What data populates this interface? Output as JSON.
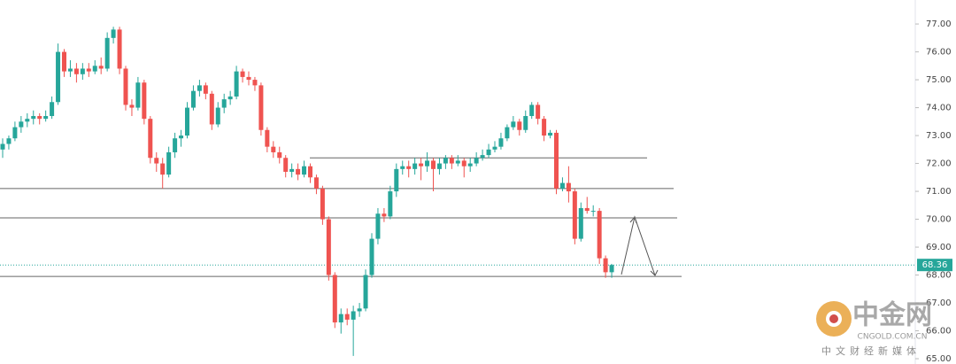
{
  "chart_data": {
    "type": "candlestick",
    "ohlc": [
      [
        72.5,
        72.9,
        72.2,
        72.7
      ],
      [
        72.7,
        73.0,
        72.5,
        72.9
      ],
      [
        72.9,
        73.5,
        72.8,
        73.3
      ],
      [
        73.3,
        73.7,
        73.1,
        73.5
      ],
      [
        73.5,
        73.8,
        73.3,
        73.6
      ],
      [
        73.6,
        73.9,
        73.4,
        73.7
      ],
      [
        73.7,
        73.8,
        73.4,
        73.6
      ],
      [
        73.6,
        73.9,
        73.5,
        73.7
      ],
      [
        73.7,
        74.4,
        73.6,
        74.2
      ],
      [
        74.2,
        76.3,
        74.1,
        76.0
      ],
      [
        76.0,
        76.1,
        75.1,
        75.3
      ],
      [
        75.3,
        75.7,
        75.1,
        75.4
      ],
      [
        75.4,
        75.6,
        74.9,
        75.2
      ],
      [
        75.2,
        75.6,
        75.0,
        75.4
      ],
      [
        75.4,
        75.6,
        75.1,
        75.3
      ],
      [
        75.3,
        75.7,
        75.2,
        75.5
      ],
      [
        75.5,
        75.8,
        75.2,
        75.4
      ],
      [
        75.4,
        76.7,
        75.3,
        76.5
      ],
      [
        76.5,
        76.9,
        76.3,
        76.8
      ],
      [
        76.8,
        76.9,
        75.2,
        75.4
      ],
      [
        75.4,
        75.5,
        73.9,
        74.1
      ],
      [
        74.1,
        74.3,
        73.7,
        74.0
      ],
      [
        74.0,
        75.1,
        73.9,
        74.9
      ],
      [
        74.9,
        75.0,
        73.4,
        73.6
      ],
      [
        73.6,
        73.7,
        72.0,
        72.2
      ],
      [
        72.2,
        72.4,
        71.7,
        72.0
      ],
      [
        72.0,
        72.2,
        71.1,
        71.6
      ],
      [
        71.6,
        72.6,
        71.5,
        72.4
      ],
      [
        72.4,
        73.1,
        72.2,
        72.9
      ],
      [
        72.9,
        73.2,
        72.6,
        73.0
      ],
      [
        73.0,
        74.2,
        72.9,
        74.0
      ],
      [
        74.0,
        74.8,
        73.9,
        74.6
      ],
      [
        74.6,
        75.0,
        74.4,
        74.8
      ],
      [
        74.8,
        74.9,
        74.3,
        74.5
      ],
      [
        74.5,
        74.6,
        73.2,
        73.4
      ],
      [
        73.4,
        74.2,
        73.3,
        74.0
      ],
      [
        74.0,
        74.5,
        73.8,
        74.3
      ],
      [
        74.3,
        74.6,
        74.1,
        74.4
      ],
      [
        74.4,
        75.5,
        74.3,
        75.3
      ],
      [
        75.3,
        75.4,
        74.9,
        75.1
      ],
      [
        75.1,
        75.3,
        74.8,
        75.0
      ],
      [
        75.0,
        75.1,
        74.6,
        74.8
      ],
      [
        74.8,
        74.9,
        73.0,
        73.2
      ],
      [
        73.2,
        73.3,
        72.4,
        72.6
      ],
      [
        72.6,
        72.8,
        72.2,
        72.4
      ],
      [
        72.4,
        72.6,
        72.0,
        72.2
      ],
      [
        72.2,
        72.3,
        71.5,
        71.7
      ],
      [
        71.7,
        72.0,
        71.5,
        71.8
      ],
      [
        71.8,
        72.0,
        71.4,
        71.6
      ],
      [
        71.6,
        72.1,
        71.5,
        71.9
      ],
      [
        71.9,
        72.0,
        71.3,
        71.5
      ],
      [
        71.5,
        71.6,
        70.9,
        71.1
      ],
      [
        71.1,
        71.2,
        69.8,
        70.0
      ],
      [
        70.0,
        70.1,
        67.8,
        68.0
      ],
      [
        68.0,
        68.1,
        66.1,
        66.3
      ],
      [
        66.3,
        66.8,
        65.9,
        66.6
      ],
      [
        66.6,
        66.8,
        66.2,
        66.4
      ],
      [
        66.4,
        66.9,
        65.1,
        66.7
      ],
      [
        66.7,
        67.0,
        66.5,
        66.8
      ],
      [
        66.8,
        68.2,
        66.7,
        68.0
      ],
      [
        68.0,
        69.5,
        67.9,
        69.3
      ],
      [
        69.3,
        70.4,
        69.1,
        70.2
      ],
      [
        70.2,
        70.4,
        69.9,
        70.1
      ],
      [
        70.1,
        71.2,
        70.0,
        71.0
      ],
      [
        71.0,
        72.0,
        70.8,
        71.8
      ],
      [
        71.8,
        72.1,
        71.6,
        71.9
      ],
      [
        71.9,
        72.1,
        71.5,
        71.8
      ],
      [
        71.8,
        72.2,
        71.6,
        72.0
      ],
      [
        72.0,
        72.2,
        71.4,
        71.9
      ],
      [
        71.9,
        72.4,
        71.7,
        72.1
      ],
      [
        72.1,
        72.2,
        71.0,
        71.8
      ],
      [
        71.8,
        72.2,
        71.6,
        72.0
      ],
      [
        72.0,
        72.3,
        71.8,
        72.2
      ],
      [
        72.2,
        72.3,
        71.8,
        72.0
      ],
      [
        72.0,
        72.3,
        71.9,
        72.1
      ],
      [
        72.1,
        72.2,
        71.5,
        71.9
      ],
      [
        71.9,
        72.2,
        71.7,
        72.0
      ],
      [
        72.0,
        72.4,
        71.9,
        72.2
      ],
      [
        72.2,
        72.5,
        72.1,
        72.3
      ],
      [
        72.3,
        72.7,
        72.2,
        72.5
      ],
      [
        72.5,
        72.8,
        72.4,
        72.6
      ],
      [
        72.6,
        73.1,
        72.5,
        72.9
      ],
      [
        72.9,
        73.4,
        72.8,
        73.3
      ],
      [
        73.3,
        73.7,
        73.2,
        73.5
      ],
      [
        73.5,
        73.6,
        73.0,
        73.2
      ],
      [
        73.2,
        73.9,
        73.1,
        73.7
      ],
      [
        73.7,
        74.2,
        73.6,
        74.1
      ],
      [
        74.1,
        74.2,
        73.4,
        73.6
      ],
      [
        73.6,
        73.7,
        72.8,
        73.0
      ],
      [
        73.0,
        73.2,
        72.9,
        73.1
      ],
      [
        73.1,
        73.2,
        70.9,
        71.1
      ],
      [
        71.1,
        71.5,
        71.0,
        71.3
      ],
      [
        71.3,
        71.9,
        70.6,
        71.0
      ],
      [
        71.0,
        71.1,
        69.1,
        69.3
      ],
      [
        69.3,
        70.6,
        69.2,
        70.4
      ],
      [
        70.4,
        70.8,
        70.2,
        70.3
      ],
      [
        70.3,
        70.5,
        70.1,
        70.3
      ],
      [
        70.3,
        70.4,
        68.4,
        68.6
      ],
      [
        68.6,
        68.7,
        67.9,
        68.1
      ],
      [
        68.1,
        68.4,
        67.9,
        68.36
      ]
    ],
    "up_color": "#26a69a",
    "down_color": "#ef5350",
    "ylim": [
      64.81,
      77.86
    ],
    "yticks": [
      {
        "value": 65,
        "label": "65.00"
      },
      {
        "value": 66,
        "label": "66.00"
      },
      {
        "value": 67,
        "label": "67.00"
      },
      {
        "value": 68,
        "label": "68.00"
      },
      {
        "value": 69,
        "label": "69.00"
      },
      {
        "value": 70,
        "label": "70.00"
      },
      {
        "value": 71,
        "label": "71.00"
      },
      {
        "value": 72,
        "label": "72.00"
      },
      {
        "value": 73,
        "label": "73.00"
      },
      {
        "value": 74,
        "label": "74.00"
      },
      {
        "value": 75,
        "label": "75.00"
      },
      {
        "value": 76,
        "label": "76.00"
      },
      {
        "value": 77,
        "label": "77.00"
      }
    ],
    "levels": [
      72.2,
      71.1,
      70.05,
      67.95
    ],
    "last_price": {
      "value": 68.36,
      "label": "68.36"
    },
    "watermark": {
      "brand": "中金网",
      "site": "CNGOLD.COM.CN",
      "slogan": "中文财经新媒体"
    }
  }
}
